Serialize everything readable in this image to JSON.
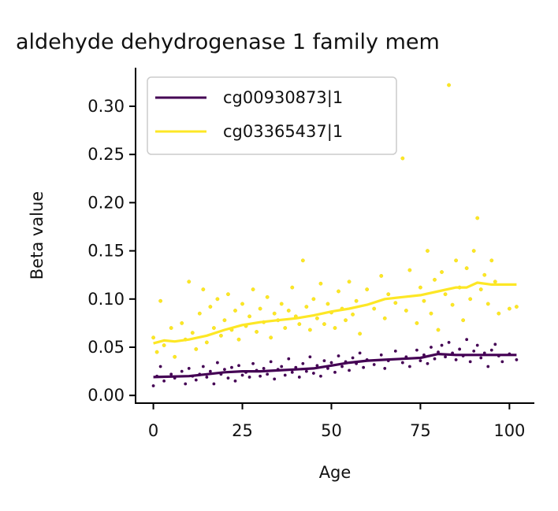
{
  "chart_data": {
    "type": "scatter",
    "title": "aldehyde dehydrogenase 1 family mem",
    "xlabel": "Age",
    "ylabel": "Beta value",
    "xlim": [
      -5,
      107
    ],
    "ylim": [
      -0.008,
      0.34
    ],
    "xticks": [
      "0",
      "25",
      "50",
      "75",
      "100"
    ],
    "xtick_values": [
      0,
      25,
      50,
      75,
      100
    ],
    "yticks": [
      "0.00",
      "0.05",
      "0.10",
      "0.15",
      "0.20",
      "0.25",
      "0.30"
    ],
    "ytick_values": [
      0.0,
      0.05,
      0.1,
      0.15,
      0.2,
      0.25,
      0.3
    ],
    "legend_position": "top-left",
    "grid": false,
    "series": [
      {
        "name": "cg00930873|1",
        "color": "#440154",
        "trend": [
          [
            0,
            0.019
          ],
          [
            10,
            0.02
          ],
          [
            15,
            0.022
          ],
          [
            20,
            0.024
          ],
          [
            25,
            0.025
          ],
          [
            30,
            0.025
          ],
          [
            35,
            0.026
          ],
          [
            40,
            0.027
          ],
          [
            45,
            0.028
          ],
          [
            50,
            0.031
          ],
          [
            55,
            0.034
          ],
          [
            60,
            0.036
          ],
          [
            65,
            0.037
          ],
          [
            70,
            0.038
          ],
          [
            75,
            0.039
          ],
          [
            80,
            0.043
          ],
          [
            85,
            0.042
          ],
          [
            90,
            0.042
          ],
          [
            95,
            0.042
          ],
          [
            100,
            0.042
          ],
          [
            102,
            0.042
          ]
        ],
        "points": [
          [
            0,
            0.01
          ],
          [
            1,
            0.02
          ],
          [
            2,
            0.03
          ],
          [
            3,
            0.015
          ],
          [
            5,
            0.022
          ],
          [
            6,
            0.018
          ],
          [
            8,
            0.025
          ],
          [
            9,
            0.012
          ],
          [
            10,
            0.028
          ],
          [
            11,
            0.02
          ],
          [
            12,
            0.016
          ],
          [
            13,
            0.022
          ],
          [
            14,
            0.03
          ],
          [
            15,
            0.019
          ],
          [
            16,
            0.025
          ],
          [
            17,
            0.012
          ],
          [
            18,
            0.034
          ],
          [
            19,
            0.022
          ],
          [
            20,
            0.027
          ],
          [
            21,
            0.018
          ],
          [
            22,
            0.029
          ],
          [
            23,
            0.015
          ],
          [
            24,
            0.031
          ],
          [
            25,
            0.021
          ],
          [
            26,
            0.024
          ],
          [
            27,
            0.019
          ],
          [
            28,
            0.033
          ],
          [
            29,
            0.026
          ],
          [
            30,
            0.02
          ],
          [
            31,
            0.028
          ],
          [
            32,
            0.022
          ],
          [
            33,
            0.035
          ],
          [
            34,
            0.017
          ],
          [
            35,
            0.027
          ],
          [
            36,
            0.03
          ],
          [
            37,
            0.021
          ],
          [
            38,
            0.038
          ],
          [
            39,
            0.024
          ],
          [
            40,
            0.029
          ],
          [
            41,
            0.019
          ],
          [
            42,
            0.033
          ],
          [
            43,
            0.025
          ],
          [
            44,
            0.04
          ],
          [
            45,
            0.023
          ],
          [
            46,
            0.031
          ],
          [
            47,
            0.02
          ],
          [
            48,
            0.036
          ],
          [
            49,
            0.028
          ],
          [
            50,
            0.034
          ],
          [
            51,
            0.024
          ],
          [
            52,
            0.041
          ],
          [
            53,
            0.03
          ],
          [
            54,
            0.035
          ],
          [
            55,
            0.026
          ],
          [
            56,
            0.039
          ],
          [
            57,
            0.033
          ],
          [
            58,
            0.044
          ],
          [
            59,
            0.029
          ],
          [
            60,
            0.037
          ],
          [
            62,
            0.032
          ],
          [
            64,
            0.042
          ],
          [
            65,
            0.028
          ],
          [
            66,
            0.036
          ],
          [
            68,
            0.046
          ],
          [
            70,
            0.034
          ],
          [
            71,
            0.04
          ],
          [
            72,
            0.03
          ],
          [
            74,
            0.047
          ],
          [
            75,
            0.036
          ],
          [
            76,
            0.042
          ],
          [
            77,
            0.033
          ],
          [
            78,
            0.05
          ],
          [
            79,
            0.038
          ],
          [
            80,
            0.045
          ],
          [
            81,
            0.052
          ],
          [
            82,
            0.04
          ],
          [
            83,
            0.055
          ],
          [
            84,
            0.044
          ],
          [
            85,
            0.037
          ],
          [
            86,
            0.048
          ],
          [
            87,
            0.041
          ],
          [
            88,
            0.058
          ],
          [
            89,
            0.035
          ],
          [
            90,
            0.046
          ],
          [
            91,
            0.052
          ],
          [
            92,
            0.039
          ],
          [
            93,
            0.044
          ],
          [
            94,
            0.03
          ],
          [
            95,
            0.047
          ],
          [
            96,
            0.053
          ],
          [
            97,
            0.041
          ],
          [
            98,
            0.035
          ],
          [
            100,
            0.043
          ],
          [
            102,
            0.037
          ]
        ]
      },
      {
        "name": "cg03365437|1",
        "color": "#fde725",
        "trend": [
          [
            0,
            0.054
          ],
          [
            3,
            0.057
          ],
          [
            6,
            0.056
          ],
          [
            10,
            0.058
          ],
          [
            15,
            0.062
          ],
          [
            20,
            0.068
          ],
          [
            25,
            0.073
          ],
          [
            30,
            0.076
          ],
          [
            35,
            0.078
          ],
          [
            40,
            0.08
          ],
          [
            45,
            0.083
          ],
          [
            50,
            0.087
          ],
          [
            55,
            0.09
          ],
          [
            60,
            0.094
          ],
          [
            65,
            0.1
          ],
          [
            70,
            0.102
          ],
          [
            75,
            0.104
          ],
          [
            80,
            0.108
          ],
          [
            85,
            0.112
          ],
          [
            88,
            0.112
          ],
          [
            91,
            0.117
          ],
          [
            95,
            0.115
          ],
          [
            100,
            0.115
          ],
          [
            102,
            0.115
          ]
        ],
        "points": [
          [
            0,
            0.06
          ],
          [
            1,
            0.045
          ],
          [
            2,
            0.098
          ],
          [
            3,
            0.052
          ],
          [
            5,
            0.07
          ],
          [
            6,
            0.04
          ],
          [
            8,
            0.075
          ],
          [
            9,
            0.058
          ],
          [
            10,
            0.118
          ],
          [
            11,
            0.065
          ],
          [
            12,
            0.048
          ],
          [
            13,
            0.085
          ],
          [
            14,
            0.11
          ],
          [
            15,
            0.055
          ],
          [
            16,
            0.092
          ],
          [
            17,
            0.07
          ],
          [
            18,
            0.1
          ],
          [
            19,
            0.062
          ],
          [
            20,
            0.078
          ],
          [
            21,
            0.105
          ],
          [
            22,
            0.068
          ],
          [
            23,
            0.088
          ],
          [
            24,
            0.058
          ],
          [
            25,
            0.095
          ],
          [
            26,
            0.072
          ],
          [
            27,
            0.082
          ],
          [
            28,
            0.11
          ],
          [
            29,
            0.066
          ],
          [
            30,
            0.09
          ],
          [
            31,
            0.076
          ],
          [
            32,
            0.102
          ],
          [
            33,
            0.06
          ],
          [
            34,
            0.085
          ],
          [
            35,
            0.078
          ],
          [
            36,
            0.095
          ],
          [
            37,
            0.07
          ],
          [
            38,
            0.088
          ],
          [
            39,
            0.112
          ],
          [
            40,
            0.082
          ],
          [
            41,
            0.074
          ],
          [
            42,
            0.14
          ],
          [
            43,
            0.092
          ],
          [
            44,
            0.068
          ],
          [
            45,
            0.1
          ],
          [
            46,
            0.08
          ],
          [
            47,
            0.116
          ],
          [
            48,
            0.074
          ],
          [
            49,
            0.095
          ],
          [
            50,
            0.086
          ],
          [
            51,
            0.07
          ],
          [
            52,
            0.108
          ],
          [
            53,
            0.09
          ],
          [
            54,
            0.078
          ],
          [
            55,
            0.118
          ],
          [
            56,
            0.084
          ],
          [
            57,
            0.098
          ],
          [
            58,
            0.064
          ],
          [
            60,
            0.11
          ],
          [
            62,
            0.09
          ],
          [
            64,
            0.124
          ],
          [
            65,
            0.08
          ],
          [
            66,
            0.105
          ],
          [
            68,
            0.096
          ],
          [
            70,
            0.246
          ],
          [
            71,
            0.088
          ],
          [
            72,
            0.13
          ],
          [
            74,
            0.075
          ],
          [
            75,
            0.112
          ],
          [
            76,
            0.098
          ],
          [
            77,
            0.15
          ],
          [
            78,
            0.085
          ],
          [
            79,
            0.12
          ],
          [
            80,
            0.068
          ],
          [
            81,
            0.128
          ],
          [
            82,
            0.105
          ],
          [
            83,
            0.322
          ],
          [
            84,
            0.094
          ],
          [
            85,
            0.14
          ],
          [
            86,
            0.112
          ],
          [
            87,
            0.078
          ],
          [
            88,
            0.132
          ],
          [
            89,
            0.1
          ],
          [
            90,
            0.15
          ],
          [
            91,
            0.184
          ],
          [
            92,
            0.11
          ],
          [
            93,
            0.125
          ],
          [
            94,
            0.095
          ],
          [
            95,
            0.14
          ],
          [
            96,
            0.118
          ],
          [
            97,
            0.085
          ],
          [
            100,
            0.09
          ],
          [
            102,
            0.092
          ]
        ]
      }
    ]
  }
}
